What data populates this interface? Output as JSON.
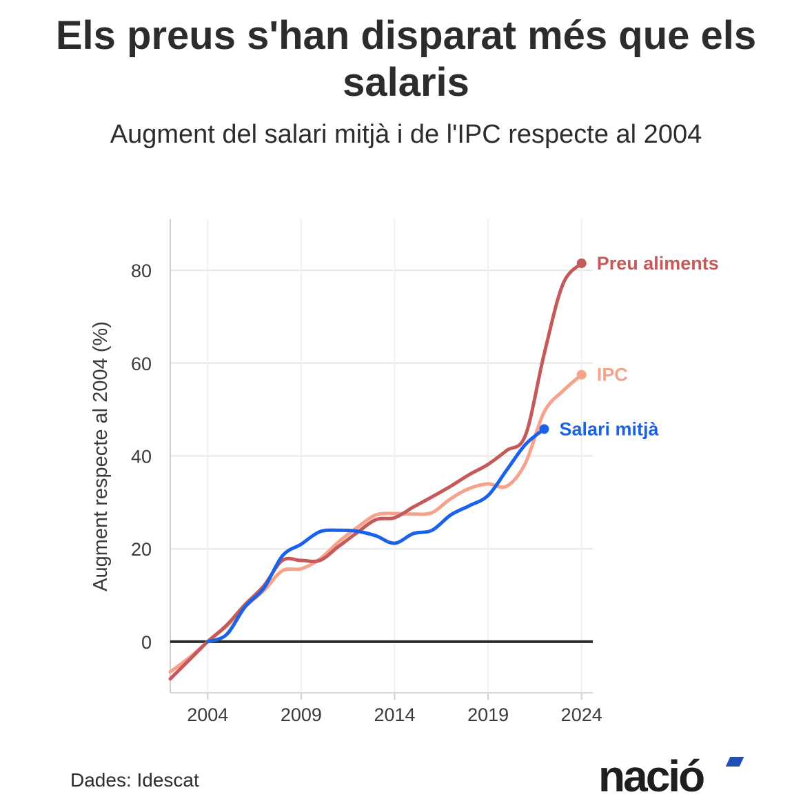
{
  "chart_data": {
    "type": "line",
    "title": "Els preus s'han disparat més que els salaris",
    "subtitle": "Augment del salari mitjà i de l'IPC respecte al 2004",
    "xlabel": "",
    "ylabel": "Augment respecte al 2004 (%)",
    "xlim": [
      2002,
      2024.6
    ],
    "ylim": [
      -11,
      91
    ],
    "x_ticks": [
      2004,
      2009,
      2014,
      2019,
      2024
    ],
    "y_ticks": [
      0,
      20,
      40,
      60,
      80
    ],
    "grid": true,
    "series": [
      {
        "name": "Preu aliments",
        "color": "#c45a5a",
        "x": [
          2002,
          2003,
          2004,
          2005,
          2006,
          2007,
          2008,
          2009,
          2010,
          2011,
          2012,
          2013,
          2014,
          2015,
          2016,
          2017,
          2018,
          2019,
          2020,
          2021,
          2022,
          2023,
          2024
        ],
        "y": [
          -8,
          -4,
          0,
          3.5,
          8,
          12,
          17.5,
          17.5,
          17.5,
          20.5,
          23.5,
          26.3,
          26.7,
          29,
          31.2,
          33.5,
          36,
          38.2,
          41.2,
          44.5,
          62,
          77,
          81.5
        ]
      },
      {
        "name": "IPC",
        "color": "#f7a28a",
        "x": [
          2002,
          2003,
          2004,
          2005,
          2006,
          2007,
          2008,
          2009,
          2010,
          2011,
          2012,
          2013,
          2014,
          2015,
          2016,
          2017,
          2018,
          2019,
          2020,
          2021,
          2022,
          2023,
          2024
        ],
        "y": [
          -6.5,
          -3.5,
          0,
          3.3,
          7.5,
          11,
          15.3,
          15.7,
          17.8,
          21.5,
          24.6,
          27.3,
          27.6,
          27.5,
          27.8,
          30.8,
          33,
          34,
          33.5,
          38.5,
          49.5,
          54,
          57.5
        ]
      },
      {
        "name": "Salari mitjà",
        "color": "#1a62e8",
        "x": [
          2004,
          2005,
          2006,
          2007,
          2008,
          2009,
          2010,
          2011,
          2012,
          2013,
          2014,
          2015,
          2016,
          2017,
          2018,
          2019,
          2020,
          2021,
          2022
        ],
        "y": [
          0,
          1.5,
          7.5,
          11.5,
          18.5,
          21,
          23.7,
          24,
          23.8,
          22.8,
          21.2,
          23.3,
          24,
          27.3,
          29.3,
          31.5,
          37,
          42.5,
          45.8
        ]
      }
    ]
  },
  "source": "Dades: Idescat",
  "logo": "nació"
}
